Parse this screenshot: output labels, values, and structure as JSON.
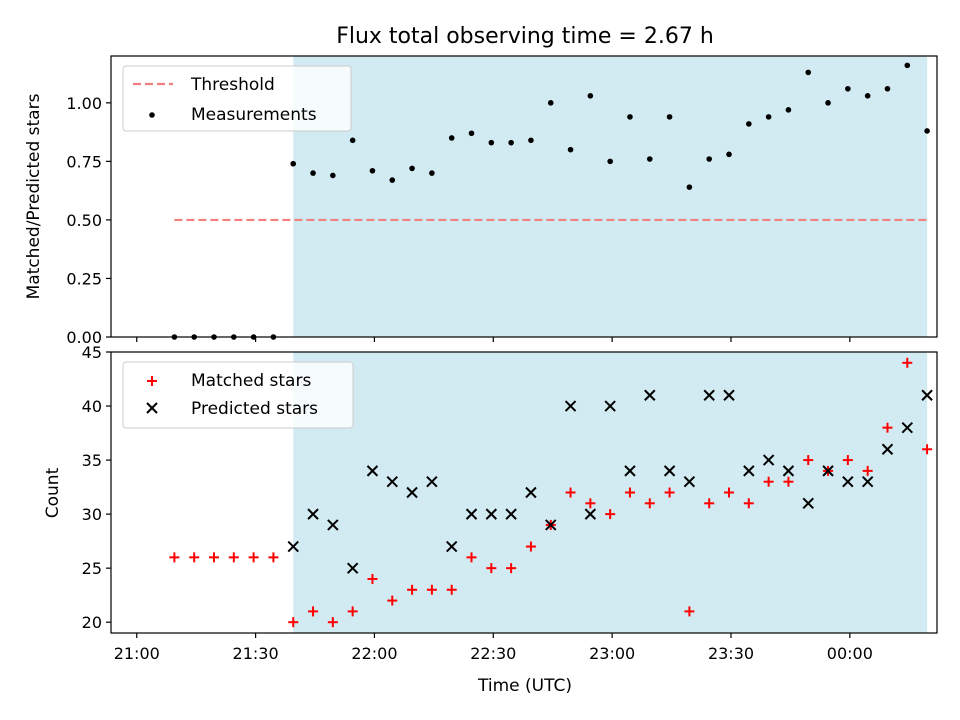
{
  "chart_data": [
    {
      "type": "scatter",
      "title": "Flux total observing time = 2.67 h",
      "xlabel": "",
      "ylabel": "Matched/Predicted stars",
      "x_units": "minutes after 21:00 UTC",
      "xlim": [
        -6.5,
        202
      ],
      "ylim": [
        0,
        1.2
      ],
      "yticks": [
        0.0,
        0.25,
        0.5,
        0.75,
        1.0
      ],
      "ytick_labels": [
        "0.00",
        "0.25",
        "0.50",
        "0.75",
        "1.00"
      ],
      "shaded_span": [
        39.5,
        199.5
      ],
      "shade_color": "#add8e6",
      "legend_position": "upper left",
      "legend": [
        {
          "label": "Threshold",
          "kind": "dashed-line",
          "color": "#f08080"
        },
        {
          "label": "Measurements",
          "kind": "dot",
          "color": "#000000"
        }
      ],
      "series": [
        {
          "name": "Threshold",
          "kind": "dashed-line",
          "color": "#f08080",
          "x": [
            9.5,
            199.5
          ],
          "y": [
            0.5,
            0.5
          ]
        },
        {
          "name": "Measurements",
          "kind": "dot",
          "color": "#000000",
          "x": [
            9.5,
            14.5,
            19.5,
            24.5,
            29.5,
            34.5,
            39.5,
            44.5,
            49.5,
            54.5,
            59.5,
            64.5,
            69.5,
            74.5,
            79.5,
            84.5,
            89.5,
            94.5,
            99.5,
            104.5,
            109.5,
            114.5,
            119.5,
            124.5,
            129.5,
            134.5,
            139.5,
            144.5,
            149.5,
            154.5,
            159.5,
            164.5,
            169.5,
            174.5,
            179.5,
            184.5,
            189.5,
            194.5,
            199.5
          ],
          "y": [
            0,
            0,
            0,
            0,
            0,
            0,
            0.74,
            0.7,
            0.69,
            0.84,
            0.71,
            0.67,
            0.72,
            0.7,
            0.85,
            0.87,
            0.83,
            0.83,
            0.84,
            1.0,
            0.8,
            1.03,
            0.75,
            0.94,
            0.76,
            0.94,
            0.64,
            0.76,
            0.78,
            0.91,
            0.94,
            0.97,
            1.13,
            1.0,
            1.06,
            1.03,
            1.06,
            1.16,
            0.88
          ]
        }
      ]
    },
    {
      "type": "scatter",
      "title": "",
      "xlabel": "Time (UTC)",
      "ylabel": "Count",
      "x_units": "minutes after 21:00 UTC",
      "xlim": [
        -6.5,
        202
      ],
      "ylim": [
        19,
        45
      ],
      "yticks": [
        20,
        25,
        30,
        35,
        40,
        45
      ],
      "ytick_labels": [
        "20",
        "25",
        "30",
        "35",
        "40",
        "45"
      ],
      "xticks": [
        0,
        30,
        60,
        90,
        120,
        150,
        180
      ],
      "xtick_labels": [
        "21:00",
        "21:30",
        "22:00",
        "22:30",
        "23:00",
        "23:30",
        "00:00"
      ],
      "shaded_span": [
        39.5,
        199.5
      ],
      "shade_color": "#add8e6",
      "legend_position": "upper left",
      "legend": [
        {
          "label": "Matched stars",
          "kind": "plus",
          "color": "#ff0000"
        },
        {
          "label": "Predicted stars",
          "kind": "cross",
          "color": "#000000"
        }
      ],
      "series": [
        {
          "name": "Matched stars",
          "kind": "plus",
          "color": "#ff0000",
          "x": [
            9.5,
            14.5,
            19.5,
            24.5,
            29.5,
            34.5,
            39.5,
            44.5,
            49.5,
            54.5,
            59.5,
            64.5,
            69.5,
            74.5,
            79.5,
            84.5,
            89.5,
            94.5,
            99.5,
            104.5,
            109.5,
            114.5,
            119.5,
            124.5,
            129.5,
            134.5,
            139.5,
            144.5,
            149.5,
            154.5,
            159.5,
            164.5,
            169.5,
            174.5,
            179.5,
            184.5,
            189.5,
            194.5,
            199.5
          ],
          "y": [
            26,
            26,
            26,
            26,
            26,
            26,
            20,
            21,
            20,
            21,
            24,
            22,
            23,
            23,
            23,
            26,
            25,
            25,
            27,
            29,
            32,
            31,
            30,
            32,
            31,
            32,
            21,
            31,
            32,
            31,
            33,
            33,
            35,
            34,
            35,
            34,
            38,
            44,
            36
          ]
        },
        {
          "name": "Predicted stars",
          "kind": "cross",
          "color": "#000000",
          "x": [
            39.5,
            44.5,
            49.5,
            54.5,
            59.5,
            64.5,
            69.5,
            74.5,
            79.5,
            84.5,
            89.5,
            94.5,
            99.5,
            104.5,
            109.5,
            114.5,
            119.5,
            124.5,
            129.5,
            134.5,
            139.5,
            144.5,
            149.5,
            154.5,
            159.5,
            164.5,
            169.5,
            174.5,
            179.5,
            184.5,
            189.5,
            194.5,
            199.5
          ],
          "y": [
            27,
            30,
            29,
            25,
            34,
            33,
            32,
            33,
            27,
            30,
            30,
            30,
            32,
            29,
            40,
            30,
            40,
            34,
            41,
            34,
            33,
            41,
            41,
            34,
            35,
            34,
            31,
            34,
            33,
            33,
            36,
            38,
            41
          ]
        }
      ]
    }
  ]
}
